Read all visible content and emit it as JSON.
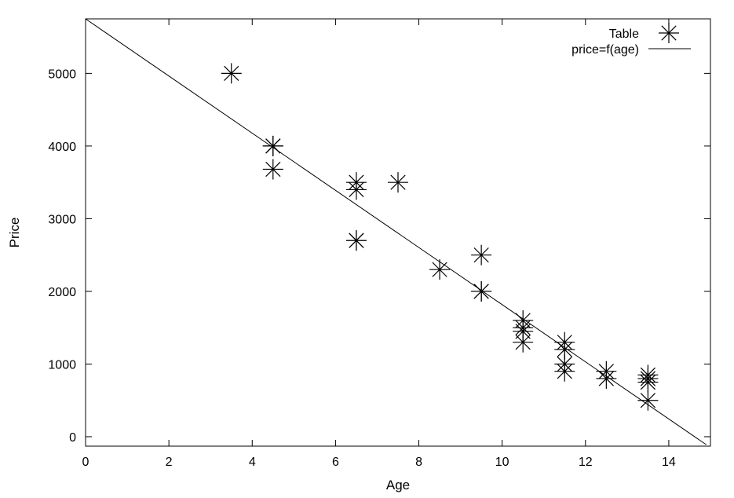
{
  "chart_data": {
    "type": "scatter",
    "xlabel": "Age",
    "ylabel": "Price",
    "xlim": [
      0,
      15
    ],
    "ylim": [
      -130,
      5750
    ],
    "xticks": [
      0,
      2,
      4,
      6,
      8,
      10,
      12,
      14
    ],
    "yticks": [
      0,
      1000,
      2000,
      3000,
      4000,
      5000
    ],
    "grid": false,
    "legend_position": "top-right",
    "series": [
      {
        "name": "Table",
        "kind": "points",
        "marker": "asterisk",
        "points": [
          [
            3.5,
            5000
          ],
          [
            4.5,
            4000
          ],
          [
            4.5,
            4000
          ],
          [
            4.5,
            3680
          ],
          [
            6.5,
            3500
          ],
          [
            6.5,
            3400
          ],
          [
            6.5,
            2700
          ],
          [
            6.5,
            2700
          ],
          [
            7.5,
            3500
          ],
          [
            8.5,
            2300
          ],
          [
            9.5,
            2500
          ],
          [
            9.5,
            2000
          ],
          [
            9.5,
            2000
          ],
          [
            10.5,
            1600
          ],
          [
            10.5,
            1500
          ],
          [
            10.5,
            1450
          ],
          [
            10.5,
            1300
          ],
          [
            11.5,
            1300
          ],
          [
            11.5,
            1200
          ],
          [
            11.5,
            1000
          ],
          [
            11.5,
            900
          ],
          [
            12.5,
            900
          ],
          [
            12.5,
            800
          ],
          [
            13.5,
            850
          ],
          [
            13.5,
            800
          ],
          [
            13.5,
            750
          ],
          [
            13.5,
            500
          ]
        ]
      },
      {
        "name": "price=f(age)",
        "kind": "line",
        "points": [
          [
            0,
            5750
          ],
          [
            14.9,
            -110
          ]
        ]
      }
    ]
  }
}
